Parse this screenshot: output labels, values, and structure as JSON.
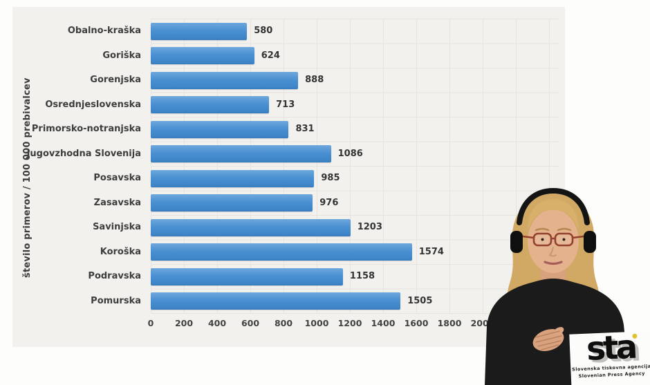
{
  "chart_data": {
    "type": "bar",
    "orientation": "horizontal",
    "title": "",
    "ylabel": "število primerov / 100 000 prebivalcev",
    "xlabel": "",
    "categories": [
      "Obalno-kraška",
      "Goriška",
      "Gorenjska",
      "Osrednjeslovenska",
      "Primorsko-notranjska",
      "Jugovzhodna Slovenija",
      "Posavska",
      "Zasavska",
      "Savinjska",
      "Koroška",
      "Podravska",
      "Pomurska"
    ],
    "values": [
      580,
      624,
      888,
      713,
      831,
      1086,
      985,
      976,
      1203,
      1574,
      1158,
      1505
    ],
    "xticks": [
      0,
      200,
      400,
      600,
      800,
      1000,
      1200,
      1400,
      1600,
      1800,
      2000
    ],
    "xlim": [
      0,
      2000
    ],
    "grid": true,
    "legend": "none",
    "bar_color": "#4a90d2",
    "panel_background": "#f2f1ee"
  },
  "logo": {
    "wordmark": "sta",
    "line1": "Slovenska tiskovna agencija",
    "line2": "Slovenian Press Agency"
  }
}
